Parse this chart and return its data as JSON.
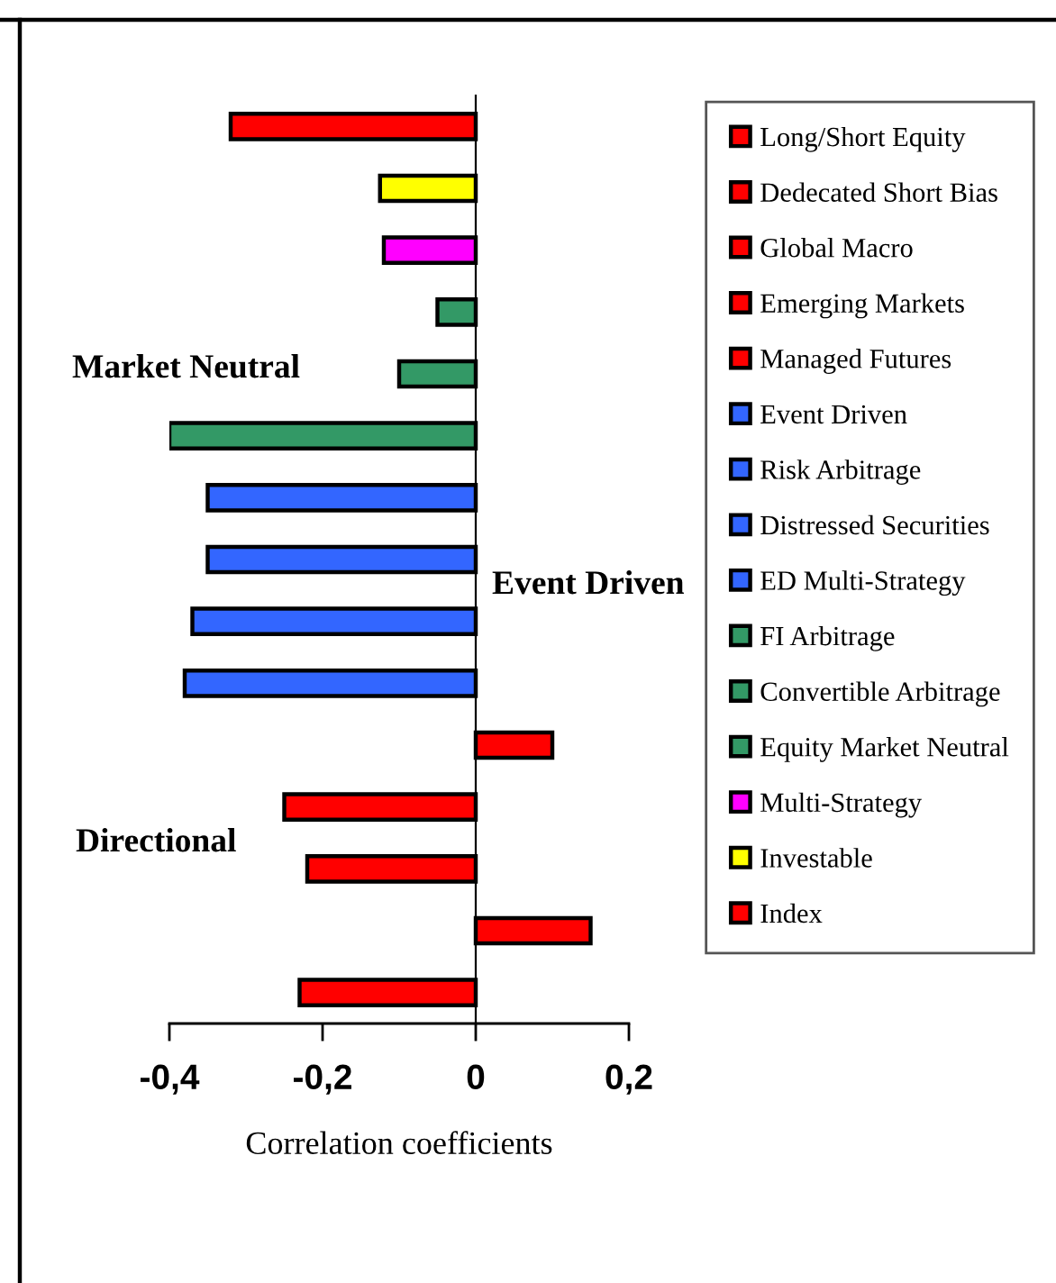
{
  "chart_data": {
    "type": "bar",
    "orientation": "horizontal",
    "categories": [
      null
    ],
    "series": [
      {
        "name": "Long/Short Equity",
        "color": "#ff0000",
        "values": [
          -0.23
        ]
      },
      {
        "name": "Dedecated Short Bias",
        "color": "#ff0000",
        "values": [
          0.15
        ]
      },
      {
        "name": "Global Macro",
        "color": "#ff0000",
        "values": [
          -0.22
        ]
      },
      {
        "name": "Emerging Markets",
        "color": "#ff0000",
        "values": [
          -0.25
        ]
      },
      {
        "name": "Managed Futures",
        "color": "#ff0000",
        "values": [
          0.1
        ]
      },
      {
        "name": "Event Driven",
        "color": "#3366ff",
        "values": [
          -0.38
        ]
      },
      {
        "name": "Risk Arbitrage",
        "color": "#3366ff",
        "values": [
          -0.37
        ]
      },
      {
        "name": "Distressed Securities",
        "color": "#3366ff",
        "values": [
          -0.35
        ]
      },
      {
        "name": "ED Multi-Strategy",
        "color": "#3366ff",
        "values": [
          -0.35
        ]
      },
      {
        "name": "FI Arbitrage",
        "color": "#339966",
        "values": [
          -0.4
        ]
      },
      {
        "name": "Convertible Arbitrage",
        "color": "#339966",
        "values": [
          -0.1
        ]
      },
      {
        "name": "Equity Market Neutral",
        "color": "#339966",
        "values": [
          -0.05
        ]
      },
      {
        "name": "Multi-Strategy",
        "color": "#ff00ff",
        "values": [
          -0.12
        ]
      },
      {
        "name": "Investable",
        "color": "#ffff00",
        "values": [
          -0.125
        ]
      },
      {
        "name": "Index",
        "color": "#ff0000",
        "values": [
          -0.32
        ]
      }
    ],
    "xlabel": "Correlation coefficients",
    "xlim": [
      -0.4,
      0.2
    ],
    "xticks": [
      {
        "value": -0.4,
        "label": "-0,4"
      },
      {
        "value": -0.2,
        "label": "-0,2"
      },
      0,
      {
        "value": 0.2,
        "label": "0,2"
      }
    ],
    "tick_labels": "x",
    "legend": "right",
    "annotations": [
      "Market Neutral",
      "Event Driven",
      "Directional"
    ]
  }
}
